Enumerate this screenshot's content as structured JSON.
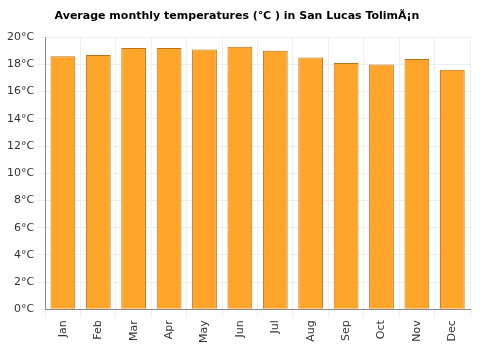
{
  "chart_data": {
    "type": "bar",
    "title": "Average monthly temperatures (℃ ) in San Lucas TolimÃ¡n",
    "categories": [
      "Jan",
      "Feb",
      "Mar",
      "Apr",
      "May",
      "Jun",
      "Jul",
      "Aug",
      "Sep",
      "Oct",
      "Nov",
      "Dec"
    ],
    "values": [
      18.6,
      18.7,
      19.2,
      19.2,
      19.1,
      19.3,
      19.0,
      18.5,
      18.1,
      18.0,
      18.4,
      17.6
    ],
    "color": "#ffa52a",
    "ylim": [
      0,
      20
    ],
    "yticks": [
      {
        "value": 0,
        "label": "0°C"
      },
      {
        "value": 2,
        "label": "2°C"
      },
      {
        "value": 4,
        "label": "4°C"
      },
      {
        "value": 6,
        "label": "6°C"
      },
      {
        "value": 8,
        "label": "8°C"
      },
      {
        "value": 10,
        "label": "10°C"
      },
      {
        "value": 12,
        "label": "12°C"
      },
      {
        "value": 14,
        "label": "14°C"
      },
      {
        "value": 16,
        "label": "16°C"
      },
      {
        "value": 18,
        "label": "18°C"
      },
      {
        "value": 20,
        "label": "20°C"
      }
    ],
    "grid": true
  }
}
